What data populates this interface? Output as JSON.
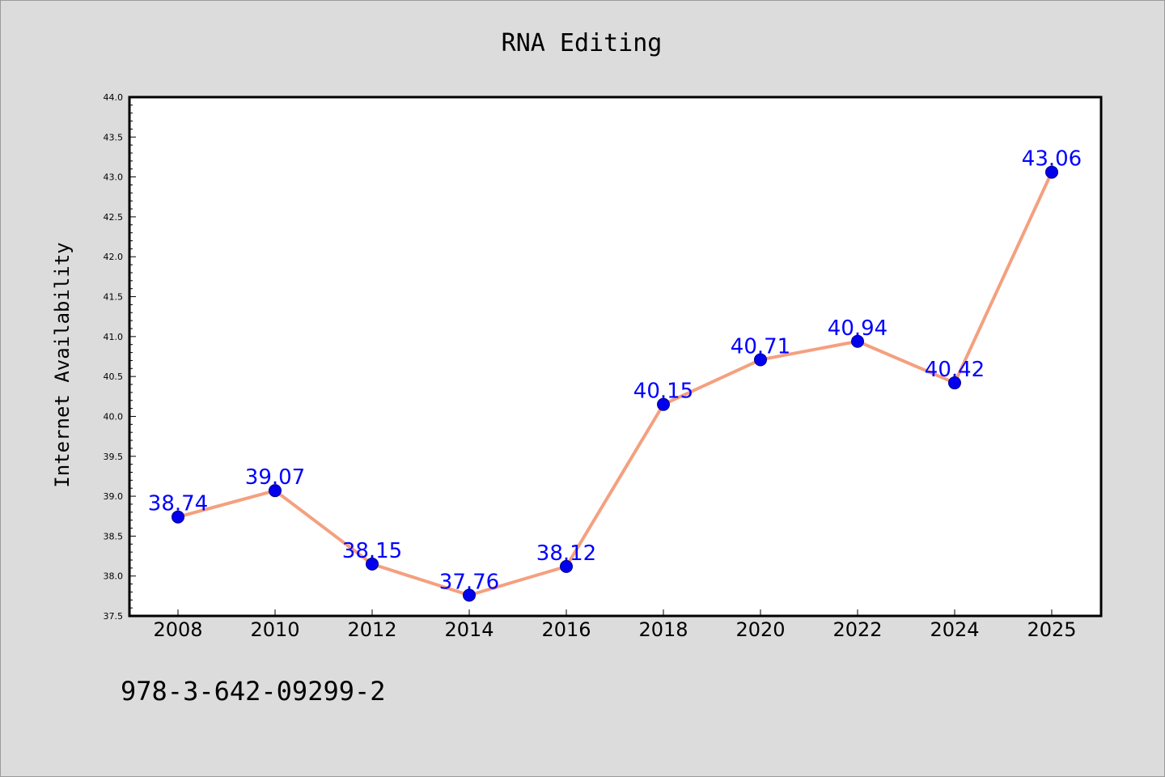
{
  "chart_data": {
    "type": "line",
    "title": "RNA Editing",
    "xlabel": "",
    "ylabel": "Internet Availability",
    "categories": [
      "2008",
      "2010",
      "2012",
      "2014",
      "2016",
      "2018",
      "2020",
      "2022",
      "2024",
      "2025"
    ],
    "series": [
      {
        "values": [
          38.74,
          39.07,
          38.15,
          37.76,
          38.12,
          40.15,
          40.71,
          40.94,
          40.42,
          43.06
        ],
        "labels": [
          "38.74",
          "39.07",
          "38.15",
          "37.76",
          "38.12",
          "40.15",
          "40.71",
          "40.94",
          "40.42",
          "43.06"
        ]
      }
    ],
    "ylim": [
      37.5,
      44.0
    ],
    "yticks": [
      "37.5",
      "38.0",
      "38.5",
      "39.0",
      "39.5",
      "40.0",
      "40.5",
      "41.0",
      "41.5",
      "42.0",
      "42.5",
      "43.0",
      "43.5",
      "44.0"
    ],
    "grid": false,
    "legend": "none",
    "colors": {
      "line": "#f4a07f",
      "marker": "#0000ee",
      "label": "#0000ff",
      "background": "#dcdcdc",
      "plot_area": "#ffffff"
    }
  },
  "footer_text": "978-3-642-09299-2"
}
